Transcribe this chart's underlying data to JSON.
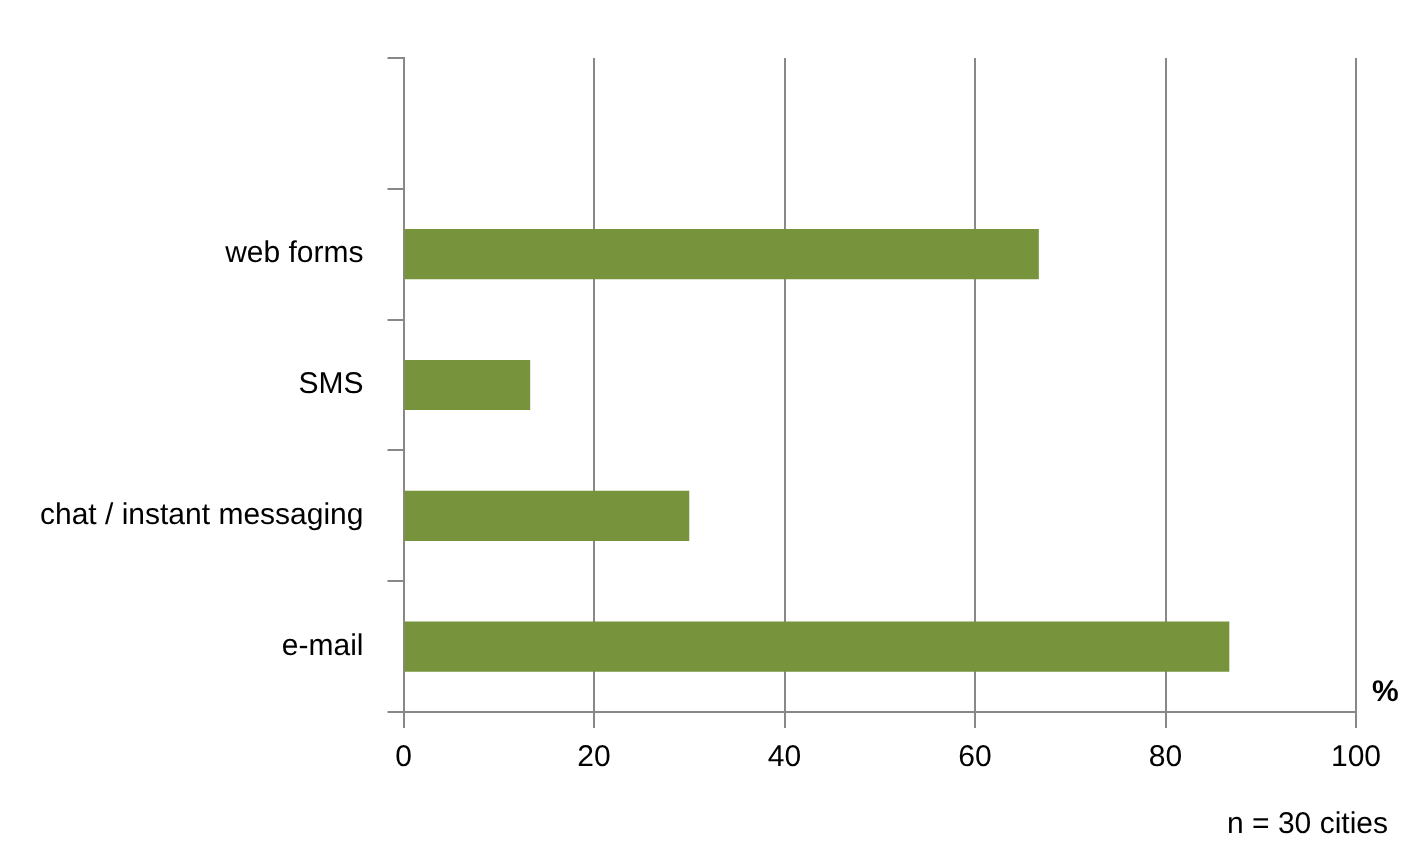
{
  "chart_data": {
    "type": "bar",
    "orientation": "horizontal",
    "categories": [
      null,
      "web forms",
      "SMS",
      "chat / instant messaging",
      "e-mail"
    ],
    "values": [
      0,
      66.7,
      13.3,
      30,
      86.7
    ],
    "color": "#77933c",
    "xlabel": "%",
    "xlim": [
      0,
      100
    ],
    "xticks": [
      0,
      20,
      40,
      60,
      80,
      100
    ],
    "grid": "x",
    "annotations": [
      "n = 30 cities"
    ]
  }
}
